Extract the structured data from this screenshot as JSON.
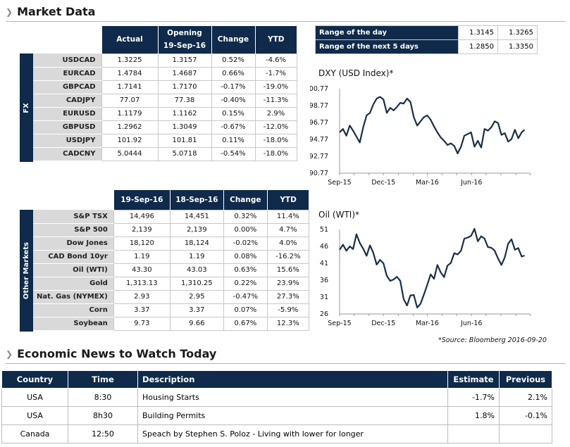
{
  "market_data": {
    "title": "Market Data",
    "fx": {
      "side_label": "FX",
      "headers": [
        "Actual",
        "Opening\n19-Sep-16",
        "Change",
        "YTD"
      ],
      "rows": [
        {
          "label": "USDCAD",
          "actual": "1.3225",
          "opening": "1.3157",
          "change": "0.52%",
          "ytd": "-4.6%"
        },
        {
          "label": "EURCAD",
          "actual": "1.4784",
          "opening": "1.4687",
          "change": "0.66%",
          "ytd": "-1.7%"
        },
        {
          "label": "GBPCAD",
          "actual": "1.7141",
          "opening": "1.7170",
          "change": "-0.17%",
          "ytd": "-19.0%"
        },
        {
          "label": "CADJPY",
          "actual": "77.07",
          "opening": "77.38",
          "change": "-0.40%",
          "ytd": "-11.3%"
        },
        {
          "label": "EURUSD",
          "actual": "1.1179",
          "opening": "1.1162",
          "change": "0.15%",
          "ytd": "2.9%"
        },
        {
          "label": "GBPUSD",
          "actual": "1.2962",
          "opening": "1.3049",
          "change": "-0.67%",
          "ytd": "-12.0%"
        },
        {
          "label": "USDJPY",
          "actual": "101.92",
          "opening": "101.81",
          "change": "0.11%",
          "ytd": "-18.0%"
        },
        {
          "label": "CADCNY",
          "actual": "5.0444",
          "opening": "5.0718",
          "change": "-0.54%",
          "ytd": "-18.0%"
        }
      ]
    },
    "other": {
      "side_label": "Other Markets",
      "headers": [
        "19-Sep-16",
        "18-Sep-16",
        "Change",
        "YTD"
      ],
      "rows": [
        {
          "label": "S&P TSX",
          "a": "14,496",
          "b": "14,451",
          "change": "0.32%",
          "ytd": "11.4%"
        },
        {
          "label": "S&P 500",
          "a": "2,139",
          "b": "2,139",
          "change": "0.00%",
          "ytd": "4.7%"
        },
        {
          "label": "Dow Jones",
          "a": "18,120",
          "b": "18,124",
          "change": "-0.02%",
          "ytd": "4.0%"
        },
        {
          "label": "CAD Bond 10yr",
          "a": "1.19",
          "b": "1.19",
          "change": "0.08%",
          "ytd": "-16.2%"
        },
        {
          "label": "Oil (WTI)",
          "a": "43.30",
          "b": "43.03",
          "change": "0.63%",
          "ytd": "15.6%"
        },
        {
          "label": "Gold",
          "a": "1,313.13",
          "b": "1,310.25",
          "change": "0.22%",
          "ytd": "23.9%"
        },
        {
          "label": "Nat. Gas (NYMEX)",
          "a": "2.93",
          "b": "2.95",
          "change": "-0.47%",
          "ytd": "27.3%"
        },
        {
          "label": "Corn",
          "a": "3.37",
          "b": "3.37",
          "change": "0.07%",
          "ytd": "-5.9%"
        },
        {
          "label": "Soybean",
          "a": "9.73",
          "b": "9.66",
          "change": "0.67%",
          "ytd": "12.3%"
        }
      ]
    },
    "range": {
      "rows": [
        {
          "label": "Range of the day",
          "low": "1.3145",
          "high": "1.3265"
        },
        {
          "label": "Range of the next 5 days",
          "low": "1.2850",
          "high": "1.3350"
        }
      ]
    },
    "source": "*Source: Bloomberg  2016-09-20"
  },
  "colors": {
    "navy": "#0f2a4a",
    "positive": "#2e9e3a",
    "negative": "#e0262b",
    "line": "#1a2f45"
  },
  "chart_data": [
    {
      "type": "line",
      "title": "DXY (USD Index)*",
      "xticks": [
        "Sep-15",
        "Dec-15",
        "Mar-16",
        "Jun-16"
      ],
      "yticks": [
        "90.77",
        "92.77",
        "94.77",
        "96.77",
        "98.77",
        "100.77"
      ],
      "ylim": [
        90.77,
        100.77
      ],
      "x": [
        "2015-09-01",
        "2015-09-08",
        "2015-09-15",
        "2015-09-22",
        "2015-09-29",
        "2015-10-06",
        "2015-10-13",
        "2015-10-20",
        "2015-10-27",
        "2015-11-03",
        "2015-11-10",
        "2015-11-17",
        "2015-11-24",
        "2015-12-01",
        "2015-12-08",
        "2015-12-15",
        "2015-12-22",
        "2015-12-29",
        "2016-01-05",
        "2016-01-12",
        "2016-01-19",
        "2016-01-26",
        "2016-02-02",
        "2016-02-09",
        "2016-02-16",
        "2016-02-23",
        "2016-03-01",
        "2016-03-08",
        "2016-03-15",
        "2016-03-22",
        "2016-03-29",
        "2016-04-05",
        "2016-04-12",
        "2016-04-19",
        "2016-04-26",
        "2016-05-03",
        "2016-05-10",
        "2016-05-17",
        "2016-05-24",
        "2016-05-31",
        "2016-06-07",
        "2016-06-14",
        "2016-06-21",
        "2016-06-28",
        "2016-07-05",
        "2016-07-12",
        "2016-07-19",
        "2016-07-26",
        "2016-08-02",
        "2016-08-09",
        "2016-08-16",
        "2016-08-23",
        "2016-08-30",
        "2016-09-06",
        "2016-09-13",
        "2016-09-19"
      ],
      "values": [
        95.6,
        96.0,
        95.2,
        96.4,
        95.8,
        95.1,
        94.4,
        96.2,
        97.6,
        97.9,
        98.9,
        99.6,
        99.8,
        99.5,
        97.9,
        98.5,
        98.2,
        98.6,
        99.1,
        99.0,
        99.6,
        99.2,
        97.4,
        96.4,
        96.9,
        97.4,
        97.6,
        97.1,
        96.3,
        95.6,
        95.0,
        94.6,
        94.1,
        94.3,
        94.0,
        93.1,
        93.9,
        95.2,
        95.4,
        95.6,
        93.9,
        94.6,
        93.8,
        96.0,
        95.8,
        96.2,
        96.9,
        96.7,
        95.3,
        95.5,
        94.5,
        94.8,
        95.9,
        94.9,
        95.6,
        95.9
      ]
    },
    {
      "type": "line",
      "title": "Oil (WTI)*",
      "xticks": [
        "Sep-15",
        "Dec-15",
        "Mar-16",
        "Jun-16"
      ],
      "yticks": [
        "26",
        "31",
        "36",
        "41",
        "46",
        "51"
      ],
      "ylim": [
        26,
        51
      ],
      "x": [
        "2015-09-01",
        "2015-09-08",
        "2015-09-15",
        "2015-09-22",
        "2015-09-29",
        "2015-10-06",
        "2015-10-13",
        "2015-10-20",
        "2015-10-27",
        "2015-11-03",
        "2015-11-10",
        "2015-11-17",
        "2015-11-24",
        "2015-12-01",
        "2015-12-08",
        "2015-12-15",
        "2015-12-22",
        "2015-12-29",
        "2016-01-05",
        "2016-01-12",
        "2016-01-19",
        "2016-01-26",
        "2016-02-02",
        "2016-02-09",
        "2016-02-16",
        "2016-02-23",
        "2016-03-01",
        "2016-03-08",
        "2016-03-15",
        "2016-03-22",
        "2016-03-29",
        "2016-04-05",
        "2016-04-12",
        "2016-04-19",
        "2016-04-26",
        "2016-05-03",
        "2016-05-10",
        "2016-05-17",
        "2016-05-24",
        "2016-05-31",
        "2016-06-07",
        "2016-06-14",
        "2016-06-21",
        "2016-06-28",
        "2016-07-05",
        "2016-07-12",
        "2016-07-19",
        "2016-07-26",
        "2016-08-02",
        "2016-08-09",
        "2016-08-16",
        "2016-08-23",
        "2016-08-30",
        "2016-09-06",
        "2016-09-13",
        "2016-09-19"
      ],
      "values": [
        45.0,
        46.5,
        44.7,
        46.0,
        45.2,
        49.6,
        47.0,
        45.3,
        43.2,
        46.3,
        44.1,
        40.6,
        42.0,
        41.0,
        37.3,
        35.8,
        36.2,
        37.0,
        35.8,
        30.4,
        28.5,
        31.5,
        31.6,
        27.9,
        29.0,
        31.7,
        34.6,
        37.7,
        36.4,
        40.5,
        38.3,
        36.9,
        40.3,
        41.1,
        44.0,
        43.6,
        44.7,
        48.3,
        48.6,
        49.1,
        51.2,
        47.5,
        49.0,
        48.3,
        45.8,
        45.6,
        44.7,
        42.4,
        40.5,
        42.8,
        46.8,
        48.1,
        45.0,
        45.5,
        43.0,
        43.3
      ]
    }
  ],
  "news": {
    "title": "Economic News to Watch Today",
    "headers": [
      "Country",
      "Time",
      "Description",
      "Estimate",
      "Previous"
    ],
    "rows": [
      {
        "country": "USA",
        "time": "8:30",
        "description": "Housing Starts",
        "estimate": "-1.7%",
        "previous": "2.1%"
      },
      {
        "country": "USA",
        "time": "8h30",
        "description": "Building Permits",
        "estimate": "1.8%",
        "previous": "-0.1%"
      },
      {
        "country": "Canada",
        "time": "12:50",
        "description": "Speach by Stephen S. Poloz - Living with lower for longer",
        "estimate": "",
        "previous": ""
      }
    ]
  }
}
